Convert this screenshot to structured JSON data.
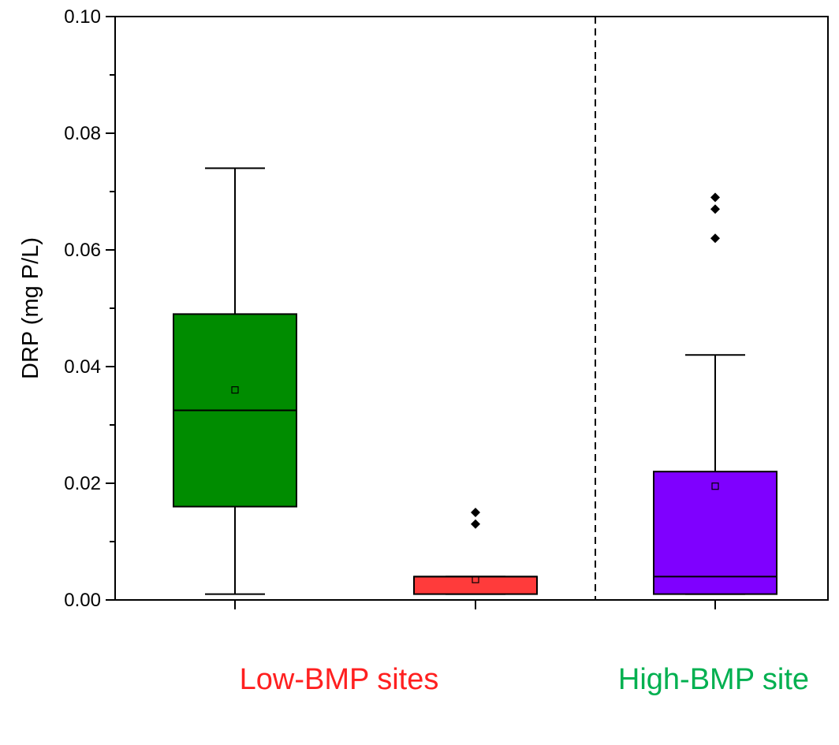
{
  "chart_data": {
    "type": "box",
    "ylabel": "DRP (mg P/L)",
    "ylim": [
      0,
      0.1
    ],
    "yticks": [
      "0.00",
      "0.02",
      "0.04",
      "0.06",
      "0.08",
      "0.10"
    ],
    "yminor_step": 0.01,
    "grid": false,
    "separator": "dashed vertical line between second and third box",
    "boxes": [
      {
        "color": "#008C00",
        "whisker_low": 0.001,
        "q1": 0.016,
        "median": 0.0325,
        "q3": 0.049,
        "whisker_high": 0.074,
        "mean": 0.036,
        "outliers": []
      },
      {
        "color": "#FF3B3B",
        "whisker_low": 0.001,
        "q1": 0.001,
        "median": 0.004,
        "q3": 0.004,
        "whisker_high": 0.004,
        "mean": 0.0035,
        "outliers": [
          0.013,
          0.015
        ]
      },
      {
        "color": "#7F00FF",
        "whisker_low": 0.001,
        "q1": 0.001,
        "median": 0.004,
        "q3": 0.022,
        "whisker_high": 0.042,
        "mean": 0.0195,
        "outliers": [
          0.062,
          0.067,
          0.069
        ]
      }
    ]
  },
  "group_labels": {
    "low": {
      "text": "Low-BMP sites",
      "color": "#FF2020"
    },
    "high": {
      "text": "High-BMP site",
      "color": "#00B050"
    }
  }
}
